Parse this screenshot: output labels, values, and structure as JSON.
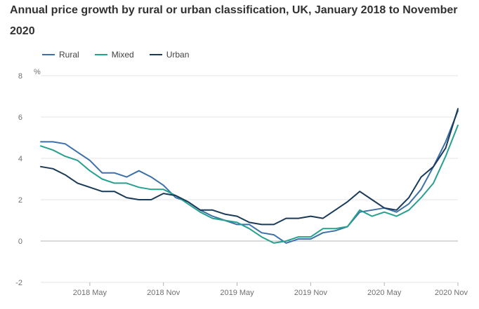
{
  "chart_data": {
    "type": "line",
    "title": "Annual price growth by rural or urban classification, UK, January 2018 to November 2020",
    "ylabel": "%",
    "xlabel": "",
    "ylim": [
      -2,
      8
    ],
    "yticks": [
      -2,
      0,
      2,
      4,
      6,
      8
    ],
    "x": [
      "2018-01",
      "2018-02",
      "2018-03",
      "2018-04",
      "2018-05",
      "2018-06",
      "2018-07",
      "2018-08",
      "2018-09",
      "2018-10",
      "2018-11",
      "2018-12",
      "2019-01",
      "2019-02",
      "2019-03",
      "2019-04",
      "2019-05",
      "2019-06",
      "2019-07",
      "2019-08",
      "2019-09",
      "2019-10",
      "2019-11",
      "2019-12",
      "2020-01",
      "2020-02",
      "2020-03",
      "2020-04",
      "2020-05",
      "2020-06",
      "2020-07",
      "2020-08",
      "2020-09",
      "2020-10",
      "2020-11"
    ],
    "xticks": [
      {
        "index": 4,
        "label": "2018 May"
      },
      {
        "index": 10,
        "label": "2018 Nov"
      },
      {
        "index": 16,
        "label": "2019 May"
      },
      {
        "index": 22,
        "label": "2019 Nov"
      },
      {
        "index": 28,
        "label": "2020 May"
      },
      {
        "index": 34,
        "label": "2020 Nov"
      }
    ],
    "grid": true,
    "legend_position": "top-left",
    "series": [
      {
        "name": "Rural",
        "color": "#3d70a8",
        "values": [
          4.8,
          4.8,
          4.7,
          4.3,
          3.9,
          3.3,
          3.3,
          3.1,
          3.4,
          3.1,
          2.7,
          2.1,
          1.9,
          1.5,
          1.2,
          1.0,
          0.8,
          0.8,
          0.4,
          0.3,
          -0.1,
          0.1,
          0.1,
          0.4,
          0.5,
          0.7,
          1.4,
          1.5,
          1.6,
          1.4,
          1.8,
          2.5,
          3.6,
          4.8,
          6.3
        ]
      },
      {
        "name": "Mixed",
        "color": "#27a08f",
        "values": [
          4.6,
          4.4,
          4.1,
          3.9,
          3.4,
          3.0,
          2.8,
          2.8,
          2.6,
          2.5,
          2.5,
          2.2,
          1.8,
          1.4,
          1.1,
          1.0,
          0.9,
          0.6,
          0.2,
          -0.1,
          0.0,
          0.2,
          0.2,
          0.6,
          0.6,
          0.7,
          1.5,
          1.2,
          1.4,
          1.2,
          1.5,
          2.1,
          2.8,
          4.1,
          5.6
        ]
      },
      {
        "name": "Urban",
        "color": "#1a3a59",
        "values": [
          3.6,
          3.5,
          3.2,
          2.8,
          2.6,
          2.4,
          2.4,
          2.1,
          2.0,
          2.0,
          2.3,
          2.2,
          1.9,
          1.5,
          1.5,
          1.3,
          1.2,
          0.9,
          0.8,
          0.8,
          1.1,
          1.1,
          1.2,
          1.1,
          1.5,
          1.9,
          2.4,
          2.0,
          1.6,
          1.5,
          2.1,
          3.1,
          3.6,
          4.5,
          6.4
        ]
      }
    ]
  }
}
